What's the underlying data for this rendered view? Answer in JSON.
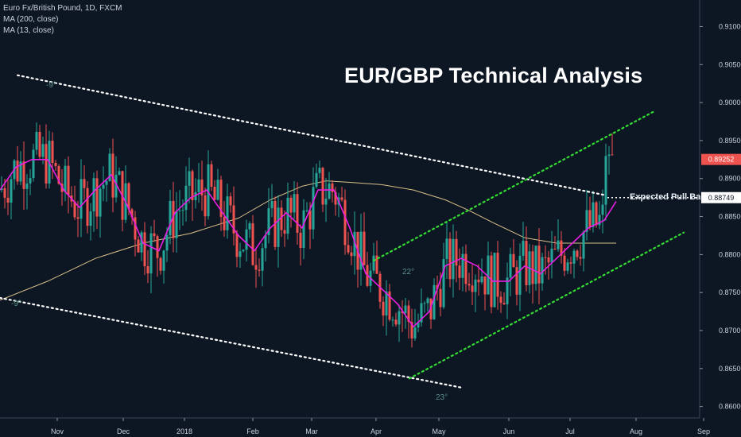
{
  "legend": {
    "symbol": "Euro Fx/British Pound, 1D, FXCM",
    "ma200": "MA (200, close)",
    "ma13": "MA (13, close)"
  },
  "title": "EUR/GBP Technical Analysis",
  "colors": {
    "background": "#0d1623",
    "up": "#26a69a",
    "down": "#ef5350",
    "ma13": "#e91ee3",
    "ma200": "#d8c08a",
    "channel_down": "#ffffff",
    "channel_up": "#33dd33",
    "price_badge": "#ef5350"
  },
  "chart_data": {
    "type": "candlestick",
    "y_axis": {
      "min": 0.8585,
      "max": 0.9135,
      "ticks": [
        "0.91000",
        "0.90500",
        "0.90000",
        "0.89500",
        "0.89000",
        "0.88500",
        "0.88000",
        "0.87500",
        "0.87000",
        "0.86500",
        "0.86000"
      ],
      "tick_values": [
        0.91,
        0.905,
        0.9,
        0.895,
        0.89,
        0.885,
        0.88,
        0.875,
        0.87,
        0.865,
        0.86
      ]
    },
    "x_axis": {
      "labels": [
        "Nov",
        "Dec",
        "2018",
        "Feb",
        "Mar",
        "Apr",
        "May",
        "Jun",
        "Jul",
        "Aug",
        "Sep"
      ]
    },
    "current_price": "0.89252",
    "current_price_value": 0.89252,
    "pullback_price": "0.88749",
    "pullback_price_value": 0.88749,
    "annotations": {
      "pullback_label": "Expected Pull Back",
      "angle_top": "-9°",
      "angle_left": "-9°",
      "angle_mid": "22°",
      "angle_bottom": "23°"
    },
    "ma13_path": [
      [
        0,
        0.8885
      ],
      [
        20,
        0.8915
      ],
      [
        40,
        0.8925
      ],
      [
        60,
        0.8925
      ],
      [
        80,
        0.8885
      ],
      [
        100,
        0.8862
      ],
      [
        120,
        0.8885
      ],
      [
        140,
        0.8905
      ],
      [
        160,
        0.8865
      ],
      [
        180,
        0.8815
      ],
      [
        200,
        0.8805
      ],
      [
        220,
        0.8855
      ],
      [
        240,
        0.8875
      ],
      [
        260,
        0.8885
      ],
      [
        280,
        0.8855
      ],
      [
        300,
        0.8825
      ],
      [
        320,
        0.8805
      ],
      [
        340,
        0.8835
      ],
      [
        360,
        0.8855
      ],
      [
        380,
        0.8835
      ],
      [
        400,
        0.8885
      ],
      [
        420,
        0.8885
      ],
      [
        440,
        0.8835
      ],
      [
        460,
        0.8775
      ],
      [
        480,
        0.8755
      ],
      [
        500,
        0.8735
      ],
      [
        520,
        0.8705
      ],
      [
        540,
        0.8725
      ],
      [
        560,
        0.8785
      ],
      [
        580,
        0.8795
      ],
      [
        600,
        0.8785
      ],
      [
        620,
        0.8765
      ],
      [
        640,
        0.8765
      ],
      [
        660,
        0.8785
      ],
      [
        680,
        0.8775
      ],
      [
        700,
        0.8795
      ],
      [
        720,
        0.8815
      ],
      [
        740,
        0.8835
      ],
      [
        760,
        0.8845
      ],
      [
        775,
        0.887
      ]
    ],
    "ma200_path": [
      [
        0,
        0.874
      ],
      [
        60,
        0.8765
      ],
      [
        120,
        0.8795
      ],
      [
        180,
        0.8815
      ],
      [
        240,
        0.8828
      ],
      [
        300,
        0.8848
      ],
      [
        340,
        0.8872
      ],
      [
        380,
        0.889
      ],
      [
        410,
        0.8897
      ],
      [
        440,
        0.8895
      ],
      [
        480,
        0.8892
      ],
      [
        520,
        0.8885
      ],
      [
        560,
        0.8872
      ],
      [
        590,
        0.8858
      ],
      [
        620,
        0.8842
      ],
      [
        660,
        0.8822
      ],
      [
        700,
        0.8815
      ],
      [
        740,
        0.8815
      ],
      [
        775,
        0.8815
      ]
    ],
    "channel_down_top": [
      [
        22,
        0.9036
      ],
      [
        762,
        0.8878
      ]
    ],
    "channel_down_bottom": [
      [
        0,
        0.8743
      ],
      [
        580,
        0.8625
      ]
    ],
    "channel_up_top": [
      [
        470,
        0.8792
      ],
      [
        822,
        0.8988
      ]
    ],
    "channel_up_bottom": [
      [
        515,
        0.8637
      ],
      [
        860,
        0.8829
      ]
    ]
  }
}
